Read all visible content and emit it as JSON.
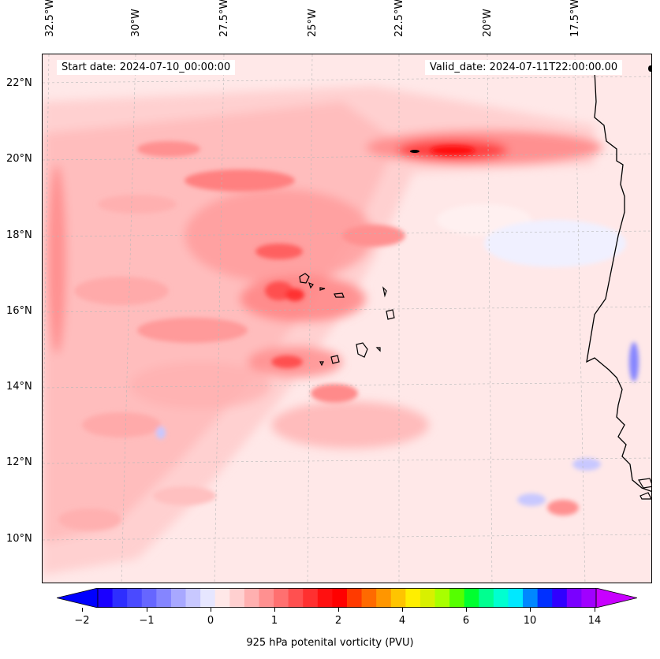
{
  "map": {
    "start_label": "Start date: 2024-07-10_00:00:00",
    "valid_label": "Valid_date: 2024-07-11T22:00:00.00",
    "lon_labels": [
      "32.5°W",
      "30°W",
      "27.5°W",
      "25°W",
      "22.5°W",
      "20°W",
      "17.5°W"
    ],
    "lat_labels": [
      "22°N",
      "20°N",
      "18°N",
      "16°N",
      "14°N",
      "12°N",
      "10°N"
    ],
    "field": "925 hPa potenital vorticity (PVU)"
  },
  "colorbar": {
    "title": "925 hPa potenital vorticity (PVU)",
    "tick_labels": [
      "−2",
      "−1",
      "0",
      "1",
      "2",
      "4",
      "6",
      "10",
      "14"
    ],
    "colors": [
      "#1a00ff",
      "#2e2eff",
      "#4a4aff",
      "#6666ff",
      "#8585ff",
      "#a8a8ff",
      "#c8c8ff",
      "#e6e6ff",
      "#ffe8e8",
      "#ffd0d0",
      "#ffb0b0",
      "#ff9090",
      "#ff7070",
      "#ff5050",
      "#ff3030",
      "#ff1010",
      "#ff0000",
      "#ff3a00",
      "#ff6a00",
      "#ff9600",
      "#ffc400",
      "#ffee00",
      "#d8f000",
      "#a8ff00",
      "#55ff00",
      "#00ff30",
      "#00ff90",
      "#00ffd0",
      "#00e8ff",
      "#0088ff",
      "#0030ff",
      "#3000ff",
      "#7a00ff",
      "#a000ff"
    ],
    "extend_low_color": "#0000ff",
    "extend_high_color": "#c800ff"
  }
}
